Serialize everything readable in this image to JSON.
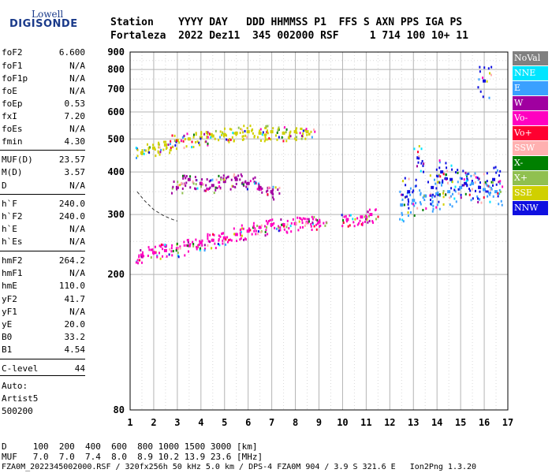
{
  "logo": {
    "line1": "Lowell",
    "line2": "DIGISONDE"
  },
  "header": {
    "row1": "Station    YYYY DAY   DDD HHMMSS P1  FFS S AXN PPS IGA PS",
    "row2": "Fortaleza  2022 Dez11  345 002000 RSF     1 714 100 10+ 11"
  },
  "params": [
    {
      "name": "foF2",
      "value": "6.600"
    },
    {
      "name": "foF1",
      "value": "N/A"
    },
    {
      "name": "foF1p",
      "value": "N/A"
    },
    {
      "name": "foE",
      "value": "N/A"
    },
    {
      "name": "foEp",
      "value": "0.53"
    },
    {
      "name": "fxI",
      "value": "7.20"
    },
    {
      "name": "foEs",
      "value": "N/A"
    },
    {
      "name": "fmin",
      "value": "4.30"
    },
    {
      "name": "MUF(D)",
      "value": "23.57"
    },
    {
      "name": "M(D)",
      "value": "3.57"
    },
    {
      "name": "D",
      "value": "N/A"
    },
    {
      "name": "h`F",
      "value": "240.0"
    },
    {
      "name": "h`F2",
      "value": "240.0"
    },
    {
      "name": "h`E",
      "value": "N/A"
    },
    {
      "name": "h`Es",
      "value": "N/A"
    },
    {
      "name": "hmF2",
      "value": "264.2"
    },
    {
      "name": "hmF1",
      "value": "N/A"
    },
    {
      "name": "hmE",
      "value": "110.0"
    },
    {
      "name": "yF2",
      "value": "41.7"
    },
    {
      "name": "yF1",
      "value": "N/A"
    },
    {
      "name": "yE",
      "value": "20.0"
    },
    {
      "name": "B0",
      "value": "33.2"
    },
    {
      "name": "B1",
      "value": "4.54"
    },
    {
      "name": "C-level",
      "value": "44"
    }
  ],
  "autoscaling": {
    "line1": "Auto:",
    "line2": "Artist5",
    "line3": "500200"
  },
  "legend": [
    {
      "label": "NoVal",
      "color": "#808080"
    },
    {
      "label": "NNE",
      "color": "#00e5ff"
    },
    {
      "label": "E",
      "color": "#3aa0ff"
    },
    {
      "label": "W",
      "color": "#a000a0"
    },
    {
      "label": "Vo-",
      "color": "#ff00c0"
    },
    {
      "label": "Vo+",
      "color": "#ff0030"
    },
    {
      "label": "SSW",
      "color": "#ffb0b0"
    },
    {
      "label": "X-",
      "color": "#008000"
    },
    {
      "label": "X+",
      "color": "#90c050"
    },
    {
      "label": "SSE",
      "color": "#d0d000"
    },
    {
      "label": "NNW",
      "color": "#1010e0"
    }
  ],
  "footer": {
    "row1": "D     100  200  400  600  800 1000 1500 3000 [km]",
    "row2": "MUF   7.0  7.0  7.4  8.0  8.9 10.2 13.9 23.6 [MHz]",
    "row3": "FZA0M_2022345002000.RSF / 320fx256h 50 kHz 5.0 km / DPS-4 FZA0M 904 / 3.9 S 321.6 E   Ion2Png 1.3.20"
  },
  "chart_data": {
    "type": "scatter",
    "title": "",
    "xlabel": "",
    "ylabel": "",
    "xlim": [
      1,
      17
    ],
    "ylim": [
      80,
      900
    ],
    "y_scale": "log",
    "xticks": [
      1,
      2,
      3,
      4,
      5,
      6,
      7,
      8,
      9,
      10,
      11,
      12,
      13,
      14,
      15,
      16,
      17
    ],
    "yticks": [
      80,
      200,
      300,
      400,
      500,
      600,
      700,
      800,
      900
    ],
    "grid": true,
    "legend_position": "right",
    "series": [
      {
        "name": "Vo-",
        "x": [
          1.5,
          2.0,
          2.5,
          3.0,
          3.5,
          4.0,
          4.5,
          5.0,
          5.5,
          6.0,
          6.5,
          7.0,
          7.5,
          8.0,
          8.5,
          9.0,
          10.2,
          10.8,
          11.2
        ],
        "y": [
          228,
          232,
          235,
          238,
          243,
          248,
          252,
          256,
          262,
          268,
          275,
          280,
          280,
          282,
          284,
          285,
          290,
          295,
          300
        ]
      },
      {
        "name": "W",
        "x": [
          3.0,
          3.5,
          4.0,
          4.5,
          5.0,
          5.5,
          6.0,
          6.5,
          7.0
        ],
        "y": [
          360,
          380,
          370,
          365,
          375,
          380,
          370,
          360,
          350
        ]
      },
      {
        "name": "SSE",
        "x": [
          1.5,
          2.0,
          2.5,
          3.0,
          3.5,
          4.0,
          4.5,
          5.0,
          5.5,
          6.0,
          6.5,
          7.0,
          7.5,
          8.0,
          8.5
        ],
        "y": [
          455,
          470,
          480,
          495,
          500,
          505,
          510,
          515,
          520,
          525,
          520,
          525,
          520,
          525,
          525
        ]
      },
      {
        "name": "E",
        "x": [
          12.5,
          13.0,
          13.5,
          14.0,
          14.5,
          15.0,
          15.5,
          16.0,
          16.5
        ],
        "y": [
          320,
          330,
          340,
          345,
          350,
          360,
          370,
          355,
          350
        ]
      },
      {
        "name": "NNW",
        "x": [
          12.8,
          13.2,
          13.8,
          14.2,
          14.6,
          15.2,
          15.8,
          16.0,
          16.4
        ],
        "y": [
          350,
          440,
          360,
          400,
          380,
          370,
          360,
          740,
          380
        ]
      }
    ],
    "annotations": [
      {
        "name": "trace-fit",
        "x": [
          1.3,
          1.6,
          2.0,
          2.4,
          2.8,
          3.0
        ],
        "y": [
          350,
          330,
          310,
          298,
          290,
          287
        ]
      }
    ]
  }
}
